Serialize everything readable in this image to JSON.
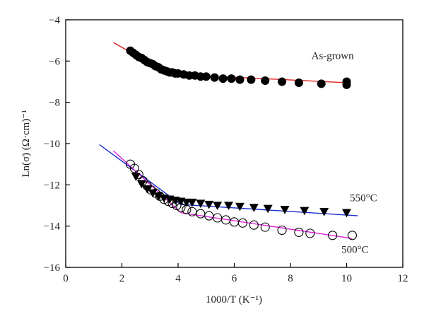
{
  "chart_data": {
    "type": "scatter",
    "xlabel": "1000/T (K⁻¹)",
    "ylabel": "Ln(σ) (Ω·cm)⁻¹",
    "xlim": [
      0,
      12
    ],
    "ylim": [
      -16,
      -4
    ],
    "x_ticks": [
      0,
      2,
      4,
      6,
      8,
      10,
      12
    ],
    "y_ticks": [
      -4,
      -6,
      -8,
      -10,
      -12,
      -14,
      -16
    ],
    "grid": false,
    "colors": {
      "as_grown_fit": "#e02020",
      "t550_fit": "#1a2fd0",
      "t500_fit": "#e020e0",
      "markers": "#000000"
    },
    "series": [
      {
        "name": "As-grown",
        "marker": "filled-circle",
        "x": [
          2.3,
          2.4,
          2.5,
          2.6,
          2.7,
          2.8,
          2.9,
          3.0,
          3.1,
          3.2,
          3.3,
          3.4,
          3.5,
          3.6,
          3.7,
          3.8,
          3.9,
          4.0,
          4.2,
          4.4,
          4.6,
          4.8,
          5.0,
          5.3,
          5.6,
          5.9,
          6.2,
          6.6,
          7.1,
          7.7,
          8.3,
          9.1,
          10.0,
          10.0
        ],
        "y": [
          -5.5,
          -5.6,
          -5.7,
          -5.8,
          -5.85,
          -5.95,
          -6.05,
          -6.1,
          -6.15,
          -6.25,
          -6.3,
          -6.4,
          -6.45,
          -6.5,
          -6.55,
          -6.55,
          -6.6,
          -6.6,
          -6.65,
          -6.7,
          -6.7,
          -6.75,
          -6.75,
          -6.8,
          -6.85,
          -6.85,
          -6.9,
          -6.9,
          -6.95,
          -7.0,
          -7.05,
          -7.1,
          -7.0,
          -7.15
        ]
      },
      {
        "name": "550°C",
        "marker": "filled-triangle-down",
        "x": [
          2.5,
          2.7,
          2.9,
          3.1,
          3.3,
          3.5,
          3.7,
          3.9,
          4.1,
          4.3,
          4.5,
          4.8,
          5.1,
          5.4,
          5.8,
          6.2,
          6.7,
          7.2,
          7.8,
          8.5,
          9.2,
          10.0
        ],
        "y": [
          -11.6,
          -11.95,
          -12.2,
          -12.4,
          -12.55,
          -12.65,
          -12.7,
          -12.75,
          -12.8,
          -12.85,
          -12.85,
          -12.9,
          -12.95,
          -13.0,
          -13.0,
          -13.05,
          -13.1,
          -13.15,
          -13.2,
          -13.25,
          -13.3,
          -13.35
        ]
      },
      {
        "name": "500°C",
        "marker": "open-circle",
        "x": [
          2.3,
          2.45,
          2.6,
          2.75,
          2.9,
          3.05,
          3.2,
          3.35,
          3.5,
          3.65,
          3.8,
          3.95,
          4.1,
          4.3,
          4.5,
          4.8,
          5.1,
          5.4,
          5.7,
          6.0,
          6.3,
          6.7,
          7.1,
          7.7,
          8.3,
          8.7,
          9.5,
          10.2
        ],
        "y": [
          -11.0,
          -11.2,
          -11.5,
          -11.8,
          -12.05,
          -12.25,
          -12.4,
          -12.55,
          -12.7,
          -12.8,
          -12.9,
          -13.0,
          -13.1,
          -13.2,
          -13.3,
          -13.4,
          -13.5,
          -13.6,
          -13.7,
          -13.8,
          -13.85,
          -13.95,
          -14.05,
          -14.2,
          -14.3,
          -14.35,
          -14.45,
          -14.45
        ]
      }
    ],
    "fit_lines": [
      {
        "series": "As-grown",
        "x": [
          1.7,
          3.25
        ],
        "y": [
          -5.1,
          -6.3
        ]
      },
      {
        "series": "As-grown",
        "x": [
          4.0,
          10.0
        ],
        "y": [
          -6.65,
          -7.05
        ]
      },
      {
        "series": "550°C",
        "x": [
          1.2,
          4.1
        ],
        "y": [
          -10.05,
          -12.95
        ]
      },
      {
        "series": "550°C",
        "x": [
          4.1,
          10.4
        ],
        "y": [
          -12.95,
          -13.5
        ]
      },
      {
        "series": "500°C",
        "x": [
          1.7,
          4.1
        ],
        "y": [
          -10.35,
          -13.35
        ]
      },
      {
        "series": "500°C",
        "x": [
          4.1,
          10.2
        ],
        "y": [
          -13.35,
          -14.6
        ]
      }
    ],
    "annotations": [
      {
        "text": "As-grown",
        "x": 9.5,
        "y": -5.9
      },
      {
        "text": "550°C",
        "x": 10.6,
        "y": -12.8
      },
      {
        "text": "500°C",
        "x": 10.3,
        "y": -15.3
      }
    ]
  }
}
